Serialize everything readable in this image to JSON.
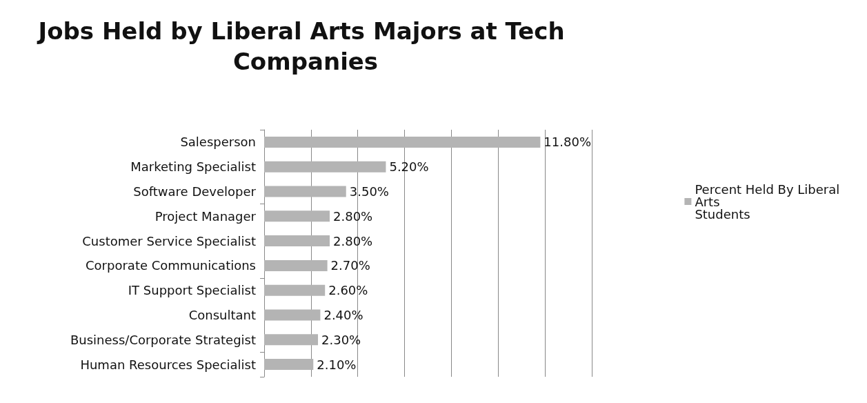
{
  "chart_data": {
    "type": "bar",
    "orientation": "horizontal",
    "title": "Jobs Held by Liberal Arts Majors at Tech Companies",
    "categories": [
      "Salesperson",
      "Marketing Specialist",
      "Software Developer",
      "Project Manager",
      "Customer Service Specialist",
      "Corporate Communications",
      "IT Support Specialist",
      "Consultant",
      "Business/Corporate Strategist",
      "Human Resources Specialist"
    ],
    "series": [
      {
        "name": "Percent Held By Liberal Arts Students",
        "color": "#b4b4b4",
        "values": [
          11.8,
          5.2,
          3.5,
          2.8,
          2.8,
          2.7,
          2.6,
          2.4,
          2.3,
          2.1
        ],
        "value_labels": [
          "11.80%",
          "5.20%",
          "3.50%",
          "2.80%",
          "2.80%",
          "2.70%",
          "2.60%",
          "2.40%",
          "2.30%",
          "2.10%"
        ]
      }
    ],
    "xlim": [
      0,
      14
    ],
    "xticks": [
      {
        "value": 0,
        "label": null
      },
      {
        "value": 2,
        "label": null
      },
      {
        "value": 4,
        "label": null
      },
      {
        "value": 6,
        "label": null
      },
      {
        "value": 8,
        "label": null
      },
      {
        "value": 10,
        "label": null
      },
      {
        "value": 12,
        "label": null
      },
      {
        "value": 14,
        "label": null
      }
    ],
    "tick_labels": "y",
    "grid": "x",
    "legend": "right"
  }
}
